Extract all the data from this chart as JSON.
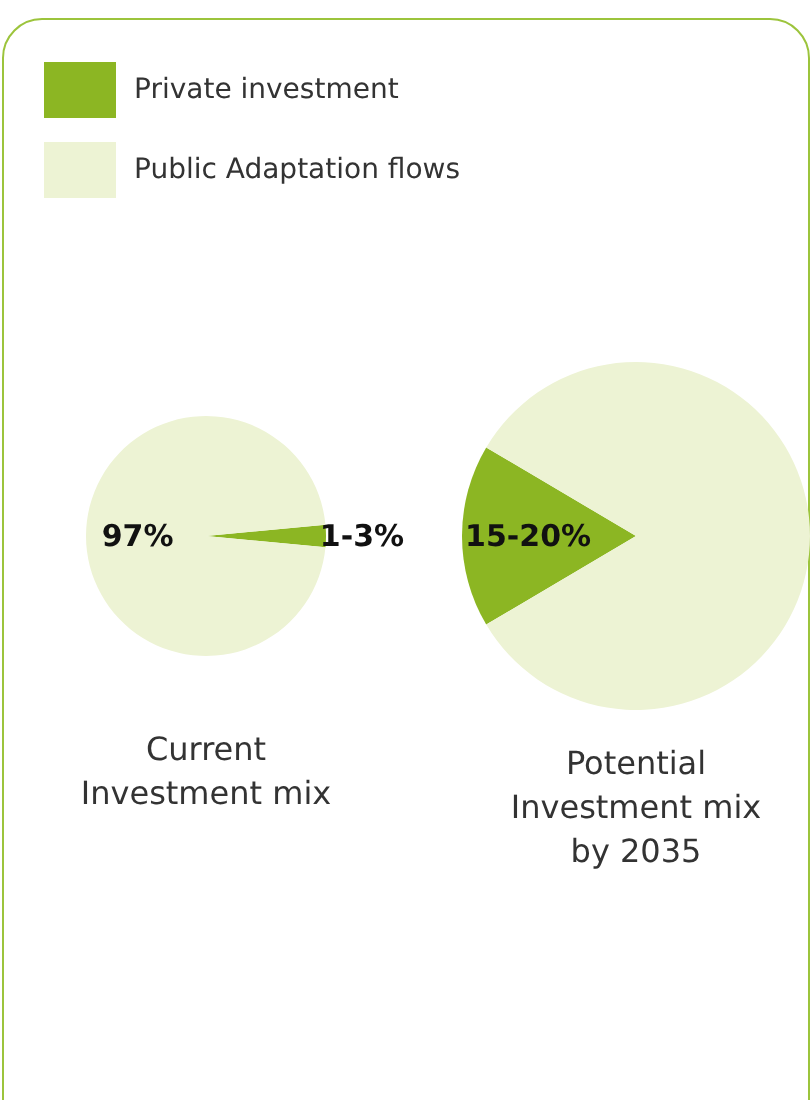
{
  "chart_data": [
    {
      "type": "pie",
      "title": "Current\nInvestment mix",
      "categories": [
        "Private investment",
        "Public Adaptation flows"
      ],
      "values": [
        3,
        97
      ],
      "colors": [
        "#8cb623",
        "#edf3d4"
      ],
      "value_labels": [
        null,
        "97%"
      ],
      "annotations": [
        "1-3%"
      ],
      "legend": "top"
    },
    {
      "type": "pie",
      "title": "Potential\nInvestment mix\nby 2035",
      "categories": [
        null,
        null
      ],
      "values": [
        17,
        83
      ],
      "colors": [
        "#8cb623",
        "#edf3d4"
      ],
      "annotations": [
        "15-20%"
      ]
    }
  ]
}
